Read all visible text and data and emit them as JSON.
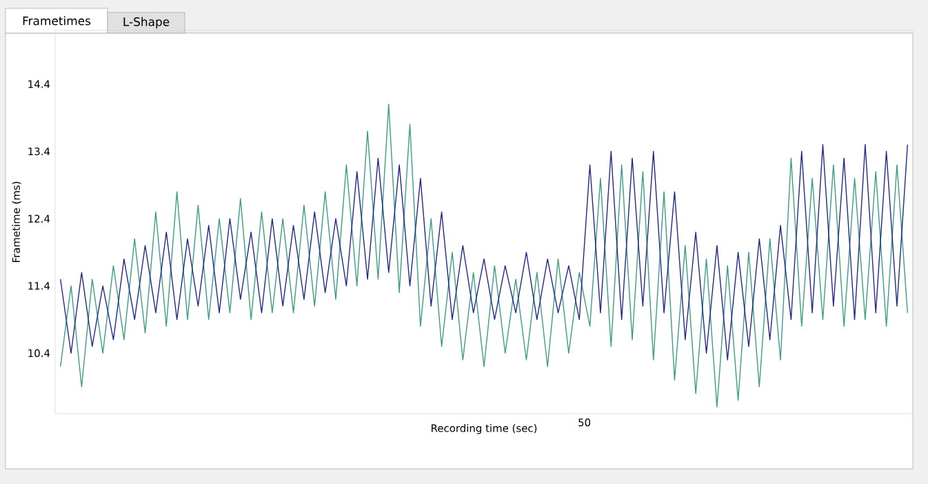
{
  "chart_data": {
    "type": "line",
    "xlabel": "Recording time (sec)",
    "ylabel": "Frametime (ms)",
    "annotations": [
      "Frametimes",
      "L-Shape",
      "50"
    ],
    "categories": [
      null,
      null,
      null,
      null,
      null,
      null,
      null,
      null,
      null,
      null,
      null,
      null,
      null,
      null,
      null,
      null,
      null,
      null,
      null,
      null,
      null,
      null,
      null,
      null,
      null,
      null,
      null,
      null,
      null,
      null,
      null,
      null,
      null,
      null,
      null,
      null,
      null,
      null,
      null,
      null,
      null,
      null,
      null,
      null,
      null,
      null,
      null,
      null,
      null,
      null,
      null,
      null,
      null,
      null,
      null,
      null,
      null,
      null,
      null,
      null,
      null,
      null,
      null,
      null,
      null,
      null,
      null,
      null,
      null,
      null,
      null,
      null,
      null,
      null,
      null,
      null,
      null,
      null,
      null,
      null,
      null
    ],
    "ylim": [
      9.5,
      15.2
    ],
    "yticks": [
      10.4,
      11.4,
      12.4,
      13.4,
      14.4
    ],
    "series": [
      {
        "color": "#3a9e84",
        "values": [
          10.2,
          11.4,
          9.9,
          11.5,
          10.4,
          11.7,
          10.6,
          12.1,
          10.7,
          12.5,
          10.8,
          12.8,
          10.9,
          12.6,
          10.9,
          12.4,
          11.0,
          12.7,
          10.9,
          12.5,
          11.0,
          12.4,
          11.0,
          12.6,
          11.1,
          12.8,
          11.2,
          13.2,
          11.4,
          13.7,
          11.5,
          14.1,
          11.3,
          13.8,
          10.8,
          12.4,
          10.5,
          11.9,
          10.3,
          11.6,
          10.2,
          11.7,
          10.4,
          11.5,
          10.3,
          11.6,
          10.2,
          11.8,
          10.4,
          11.6,
          10.8,
          13.0,
          10.5,
          13.2,
          10.6,
          13.1,
          10.3,
          12.8,
          10.0,
          12.0,
          9.8,
          11.8,
          9.6,
          11.7,
          9.7,
          11.9,
          9.9,
          12.1,
          10.3,
          13.3,
          10.8,
          13.0,
          10.9,
          13.2,
          10.8,
          13.0,
          10.9,
          13.1,
          10.8,
          13.2,
          11.0
        ]
      },
      {
        "color": "#22288a",
        "values": [
          11.5,
          10.4,
          11.6,
          10.5,
          11.4,
          10.6,
          11.8,
          10.9,
          12.0,
          11.0,
          12.2,
          10.9,
          12.1,
          11.1,
          12.3,
          11.0,
          12.4,
          11.2,
          12.2,
          11.0,
          12.4,
          11.1,
          12.3,
          11.2,
          12.5,
          11.3,
          12.4,
          11.4,
          13.1,
          11.5,
          13.3,
          11.6,
          13.2,
          11.4,
          13.0,
          11.1,
          12.5,
          10.9,
          12.0,
          11.0,
          11.8,
          10.9,
          11.7,
          11.0,
          11.9,
          10.9,
          11.8,
          11.0,
          11.7,
          10.9,
          13.2,
          11.0,
          13.4,
          10.9,
          13.3,
          11.1,
          13.4,
          11.0,
          12.8,
          10.6,
          12.2,
          10.4,
          12.0,
          10.3,
          11.9,
          10.5,
          12.1,
          10.6,
          12.3,
          10.9,
          13.4,
          11.0,
          13.5,
          11.1,
          13.3,
          10.9,
          13.5,
          11.0,
          13.4,
          11.1,
          13.5
        ]
      }
    ]
  }
}
